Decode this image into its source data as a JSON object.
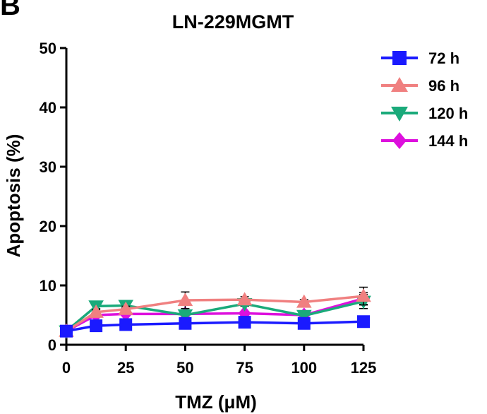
{
  "panel_label": "B",
  "chart_data": {
    "type": "line",
    "title": "LN-229MGMT",
    "xlabel": "TMZ (μM)",
    "ylabel": "Apoptosis (%)",
    "x": [
      0,
      12.5,
      25,
      50,
      75,
      100,
      125
    ],
    "xticks": [
      "0",
      "25",
      "50",
      "75",
      "100",
      "125"
    ],
    "xtick_values": [
      0,
      25,
      50,
      75,
      100,
      125
    ],
    "xlim": [
      0,
      125
    ],
    "yticks": [
      "0",
      "10",
      "20",
      "30",
      "40",
      "50"
    ],
    "ytick_values": [
      0,
      10,
      20,
      30,
      40,
      50
    ],
    "ylim": [
      0,
      50
    ],
    "grid": false,
    "legend_position": "top-right",
    "series": [
      {
        "name": "72 h",
        "color": "#1a1aff",
        "marker": "square",
        "values": [
          2.3,
          3.2,
          3.4,
          3.6,
          3.8,
          3.6,
          3.9
        ],
        "errors": [
          0,
          0.2,
          0.2,
          0.2,
          0.2,
          0.2,
          0.3
        ]
      },
      {
        "name": "96 h",
        "color": "#f08080",
        "marker": "triangle-up",
        "values": [
          2.3,
          5.5,
          6.0,
          7.5,
          7.6,
          7.2,
          8.2
        ],
        "errors": [
          0,
          0.4,
          0.5,
          1.4,
          0.5,
          0.4,
          1.5
        ]
      },
      {
        "name": "120 h",
        "color": "#1aaa7a",
        "marker": "triangle-down",
        "values": [
          2.3,
          6.5,
          6.6,
          5.0,
          6.9,
          4.9,
          7.3
        ],
        "errors": [
          0,
          0.4,
          0.4,
          0.5,
          0.4,
          0.4,
          1.2
        ]
      },
      {
        "name": "144 h",
        "color": "#dd10dd",
        "marker": "diamond",
        "values": [
          2.3,
          5.0,
          5.2,
          5.2,
          5.3,
          5.0,
          7.8
        ],
        "errors": [
          0,
          0.3,
          0.3,
          0.4,
          0.3,
          0.3,
          1.0
        ]
      }
    ]
  }
}
